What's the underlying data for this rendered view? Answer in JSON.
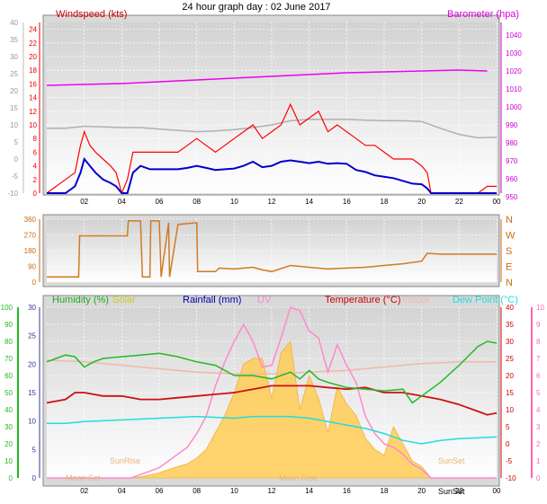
{
  "chart_data": [
    {
      "type": "line",
      "title": "24 hour graph day : 02 June 2017",
      "left_axis_title": "Windspeed (kts)",
      "right_axis_title": "Barometer (hpa)",
      "outer_axis_ticks": [
        "-10",
        "-5",
        "0",
        "5",
        "10",
        "15",
        "20",
        "25",
        "30",
        "35",
        "40"
      ],
      "wind_axis_ticks": [
        "0",
        "2",
        "4",
        "6",
        "8",
        "10",
        "12",
        "14",
        "16",
        "18",
        "20",
        "22",
        "24"
      ],
      "baro_axis_ticks": [
        "950",
        "960",
        "970",
        "980",
        "990",
        "1000",
        "1010",
        "1020",
        "1030",
        "1040"
      ],
      "x_ticks": [
        "02",
        "04",
        "06",
        "08",
        "10",
        "12",
        "14",
        "16",
        "18",
        "20",
        "22",
        "00"
      ],
      "xlim_hours": [
        0,
        24
      ],
      "wind_ylim": [
        0,
        25
      ],
      "baro_ylim": [
        952,
        1047
      ],
      "series": [
        {
          "name": "gust",
          "color": "#ff0000",
          "hours": [
            0,
            0.5,
            1,
            1.5,
            1.8,
            2,
            2.3,
            2.6,
            3,
            3.4,
            3.7,
            4,
            4.3,
            4.6,
            5,
            5.5,
            6,
            6.5,
            7,
            7.5,
            8,
            8.5,
            9,
            9.5,
            10,
            10.5,
            11,
            11.5,
            12,
            12.5,
            13,
            13.5,
            14,
            14.5,
            15,
            15.5,
            16,
            16.5,
            17,
            17.5,
            18,
            18.5,
            19,
            19.5,
            20,
            20.3,
            20.5,
            21,
            22,
            23,
            23.5,
            24
          ],
          "values": [
            0,
            1,
            2,
            3,
            7,
            9,
            7,
            6,
            5,
            4,
            3,
            0,
            2,
            6,
            6,
            6,
            6,
            6,
            6,
            7,
            8,
            7,
            6,
            7,
            8,
            9,
            10,
            8,
            9,
            10,
            13,
            10,
            11,
            12,
            9,
            10,
            9,
            8,
            7,
            7,
            6,
            5,
            5,
            5,
            4,
            3,
            0,
            0,
            0,
            0,
            1,
            1
          ]
        },
        {
          "name": "average",
          "color": "#0000cc",
          "hours": [
            0,
            0.5,
            1,
            1.5,
            1.8,
            2,
            2.3,
            2.6,
            3,
            3.4,
            3.7,
            4,
            4.3,
            4.6,
            5,
            5.5,
            6,
            6.5,
            7,
            7.5,
            8,
            8.5,
            9,
            9.5,
            10,
            10.5,
            11,
            11.5,
            12,
            12.5,
            13,
            13.5,
            14,
            14.5,
            15,
            15.5,
            16,
            16.5,
            17,
            17.5,
            18,
            18.5,
            19,
            19.5,
            20,
            20.3,
            20.5,
            21,
            22,
            23,
            23.5,
            24
          ],
          "values": [
            0,
            0,
            0,
            1,
            3,
            5,
            4,
            3,
            2,
            1.5,
            1,
            0,
            0,
            3,
            4,
            3.5,
            3.5,
            3.5,
            3.5,
            3.7,
            4,
            3.7,
            3.4,
            3.5,
            3.6,
            4,
            4.6,
            3.8,
            4,
            4.6,
            4.8,
            4.6,
            4.4,
            4.6,
            4.3,
            4.4,
            4.3,
            3.4,
            3.1,
            2.6,
            2.4,
            2.2,
            1.8,
            1.4,
            1.3,
            0.7,
            0,
            0,
            0,
            0,
            0,
            0
          ]
        },
        {
          "name": "barometer",
          "color": "#ee00ee",
          "axis": "right",
          "hours": [
            0,
            4,
            8,
            12,
            16,
            20,
            22,
            23.5
          ],
          "values": [
            1012,
            1013,
            1015,
            1017,
            1019,
            1020,
            1020.5,
            1020
          ]
        },
        {
          "name": "previous barometer",
          "color": "#b0b0b0",
          "hours": [
            0,
            1,
            2,
            3,
            4,
            5,
            6,
            7,
            8,
            9,
            10,
            11,
            12,
            13,
            14,
            15,
            16,
            17,
            18,
            19,
            20,
            21,
            22,
            23,
            24
          ],
          "values": [
            9.5,
            9.5,
            9.8,
            9.7,
            9.6,
            9.6,
            9.4,
            9.2,
            9,
            9.1,
            9.3,
            9.6,
            10,
            10.6,
            10.8,
            10.8,
            10.8,
            10.7,
            10.6,
            10.6,
            10.5,
            9.5,
            8.6,
            8.1,
            8.2
          ]
        }
      ]
    },
    {
      "type": "line",
      "left_axis_ticks": [
        "0",
        "90",
        "180",
        "270",
        "360"
      ],
      "right_axis_ticks": [
        "N",
        "E",
        "S",
        "W",
        "N"
      ],
      "ylim": [
        0,
        360
      ],
      "series": [
        {
          "name": "wind direction",
          "color": "#d07a22",
          "hours": [
            0,
            1.7,
            1.75,
            3.8,
            4.3,
            4.35,
            5,
            5.1,
            5.5,
            5.55,
            6,
            6.1,
            6.5,
            6.55,
            7,
            7.05,
            8,
            8.05,
            9,
            9.2,
            10,
            11,
            11.5,
            12,
            13,
            14,
            15,
            16,
            17,
            18,
            19,
            20,
            20.3,
            21,
            22,
            23,
            24
          ],
          "values": [
            30,
            30,
            265,
            265,
            265,
            350,
            350,
            30,
            30,
            350,
            350,
            30,
            340,
            30,
            330,
            330,
            340,
            60,
            60,
            80,
            75,
            85,
            70,
            60,
            95,
            85,
            75,
            80,
            85,
            95,
            105,
            120,
            165,
            160,
            160,
            160,
            160
          ]
        }
      ]
    },
    {
      "type": "line",
      "legend": [
        "Humidity (%)",
        "Solar",
        "Rainfall (mm)",
        "UV",
        "Temperature (°C)",
        "Indoor",
        "Dew Point (°C)"
      ],
      "far_left_ticks": [
        "0",
        "10",
        "20",
        "30",
        "40",
        "50",
        "60",
        "70",
        "80",
        "90",
        "100"
      ],
      "left_ticks": [
        "0",
        "5",
        "10",
        "15",
        "20",
        "25",
        "30"
      ],
      "right_ticks": [
        "-10",
        "-5",
        "0",
        "5",
        "10",
        "15",
        "20",
        "25",
        "30",
        "35",
        "40"
      ],
      "far_right_ticks": [
        "0",
        "1",
        "2",
        "3",
        "4",
        "5",
        "6",
        "7",
        "8",
        "9",
        "10"
      ],
      "x_ticks": [
        "02",
        "04",
        "06",
        "08",
        "10",
        "12",
        "14",
        "16",
        "18",
        "20",
        "22",
        "00"
      ],
      "sun_labels": {
        "rise": "SunRise",
        "set_left": "SunSet",
        "set_right": "SunSet",
        "moon_set": "Moon Set",
        "moon_rise": "Moon Rise"
      },
      "series": [
        {
          "name": "Humidity (%)",
          "color": "#22bb22",
          "axis": "far-left",
          "hours": [
            0,
            0.5,
            1,
            1.5,
            2,
            2.5,
            3,
            4,
            5,
            6,
            7,
            8,
            9,
            10,
            11,
            12,
            13,
            13.5,
            14,
            14.5,
            15,
            16,
            17,
            18,
            19,
            19.5,
            20,
            21,
            22,
            23,
            23.5,
            24
          ],
          "values": [
            68,
            70,
            72,
            71,
            65,
            68,
            70,
            71,
            72,
            73,
            71,
            68,
            66,
            60,
            60,
            58,
            62,
            58,
            63,
            58,
            56,
            53,
            52,
            51,
            52,
            44,
            48,
            56,
            66,
            77,
            80,
            79
          ]
        },
        {
          "name": "Temperature (°C)",
          "color": "#cc1111",
          "axis": "right",
          "hours": [
            0,
            1,
            1.5,
            2,
            3,
            4,
            5,
            6,
            7,
            8,
            9,
            10,
            11,
            12,
            13,
            14,
            15,
            16,
            17,
            18,
            19,
            20,
            21,
            22,
            23,
            23.5,
            24
          ],
          "values": [
            12,
            13,
            15,
            15,
            14,
            14,
            13,
            13,
            13.5,
            14,
            14.5,
            15,
            16,
            17,
            17,
            17,
            16.5,
            16,
            16.5,
            15,
            15,
            14,
            13,
            11.5,
            9.5,
            8.5,
            9
          ]
        },
        {
          "name": "Indoor",
          "color": "#f0b8a8",
          "axis": "right",
          "hours": [
            0,
            2,
            4,
            6,
            8,
            10,
            12,
            14,
            16,
            18,
            20,
            22,
            24
          ],
          "values": [
            24.5,
            24,
            23,
            22,
            21,
            20.5,
            20.5,
            21,
            21.5,
            22.5,
            23.5,
            24,
            24
          ]
        },
        {
          "name": "Dew Point (°C)",
          "color": "#22dddd",
          "axis": "right",
          "hours": [
            0,
            1,
            2,
            4,
            6,
            8,
            10,
            11,
            12,
            13,
            14,
            15,
            16,
            17,
            18,
            19,
            20,
            21,
            22,
            24
          ],
          "values": [
            6,
            6,
            6.5,
            7,
            7.5,
            8,
            7.5,
            8,
            8,
            8,
            7.5,
            6.5,
            5.5,
            4.5,
            3,
            1,
            0,
            1,
            1.5,
            2
          ]
        },
        {
          "name": "Solar",
          "color": "#ffcc55",
          "axis": "left",
          "hours": [
            0,
            4.5,
            5,
            5.5,
            6,
            6.5,
            7,
            7.5,
            8,
            8.5,
            9,
            9.5,
            10,
            10.5,
            11,
            11.5,
            12,
            12.5,
            13,
            13.5,
            14,
            14.5,
            15,
            15.5,
            16,
            16.5,
            17,
            17.5,
            18,
            18.5,
            19,
            19.5,
            20,
            20.5,
            24
          ],
          "values": [
            0,
            0,
            0.2,
            0.5,
            0.9,
            1.5,
            2,
            2.5,
            3.5,
            5,
            8,
            11,
            15,
            20,
            21,
            21,
            14,
            22,
            24,
            12,
            18,
            14,
            8,
            16,
            13,
            11,
            7,
            5,
            4,
            9,
            6,
            3,
            2,
            0,
            0
          ]
        },
        {
          "name": "UV",
          "color": "#ff88cc",
          "axis": "far-right",
          "hours": [
            0,
            4.5,
            5,
            5.5,
            6,
            6.5,
            7,
            7.5,
            8,
            8.5,
            9,
            9.5,
            10,
            10.5,
            11,
            11.5,
            12,
            12.5,
            13,
            13.5,
            14,
            14.5,
            15,
            15.5,
            16,
            16.5,
            17,
            17.5,
            18,
            18.5,
            19,
            19.5,
            20,
            20.5,
            24
          ],
          "values": [
            0,
            0,
            0.2,
            0.4,
            0.6,
            1,
            1.4,
            1.8,
            2.6,
            3.6,
            5.4,
            6.8,
            8,
            9,
            8,
            6.5,
            6.6,
            8.2,
            10,
            9.8,
            8.6,
            8.2,
            6.2,
            7.8,
            6.6,
            5.6,
            3.6,
            2.6,
            2,
            1.8,
            1.4,
            0.8,
            0.5,
            0,
            0
          ]
        }
      ]
    }
  ]
}
